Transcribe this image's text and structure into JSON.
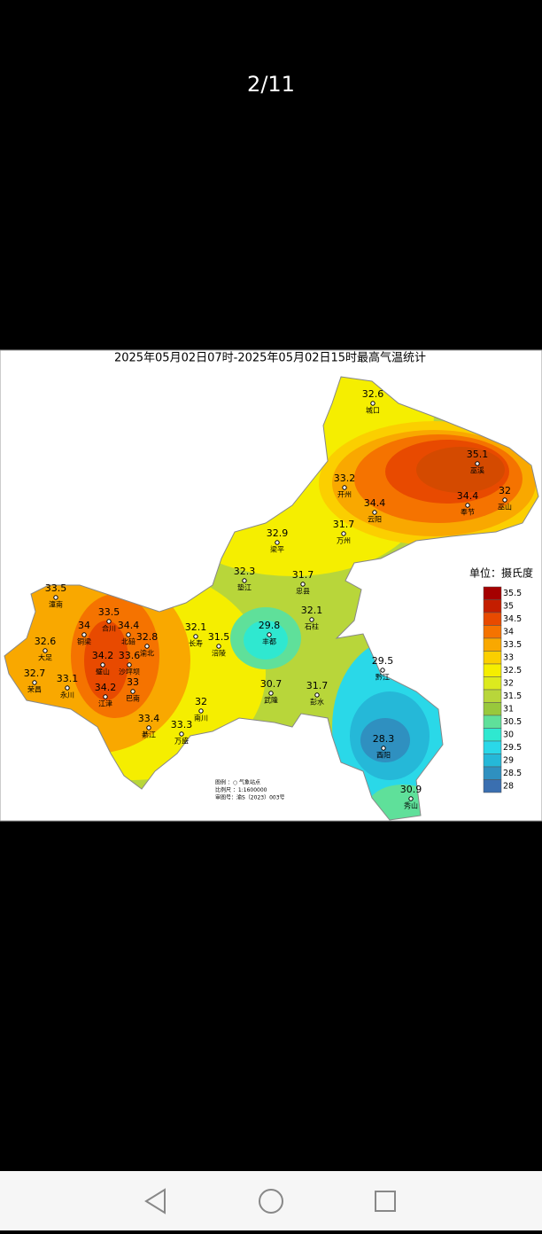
{
  "viewer": {
    "counter": "2/11"
  },
  "map": {
    "title": "2025年05月02日07时-2025年05月02日15时最高气温统计",
    "stations": [
      {
        "name": "城口",
        "value": 32.6
      },
      {
        "name": "巫溪",
        "value": 35.1
      },
      {
        "name": "开州",
        "value": 33.2
      },
      {
        "name": "巫山",
        "value": 32
      },
      {
        "name": "云阳",
        "value": 34.4
      },
      {
        "name": "奉节",
        "value": 34.4
      },
      {
        "name": "万州",
        "value": 31.7
      },
      {
        "name": "梁平",
        "value": 32.9
      },
      {
        "name": "垫江",
        "value": 32.3
      },
      {
        "name": "忠县",
        "value": 31.7
      },
      {
        "name": "潼南",
        "value": 33.5
      },
      {
        "name": "合川",
        "value": 33.5
      },
      {
        "name": "石柱",
        "value": 32.1
      },
      {
        "name": "铜梁",
        "value": 34
      },
      {
        "name": "北碚",
        "value": 34.4
      },
      {
        "name": "渝北",
        "value": 32.8
      },
      {
        "name": "长寿",
        "value": 32.1
      },
      {
        "name": "涪陵",
        "value": 31.5
      },
      {
        "name": "丰都",
        "value": 29.8
      },
      {
        "name": "大足",
        "value": 32.6
      },
      {
        "name": "璧山",
        "value": 34.2
      },
      {
        "name": "沙坪坝",
        "value": 33.6
      },
      {
        "name": "黔江",
        "value": 29.5
      },
      {
        "name": "荣昌",
        "value": 32.7
      },
      {
        "name": "永川",
        "value": 33.1
      },
      {
        "name": "巴南",
        "value": 33
      },
      {
        "name": "江津",
        "value": 34.2
      },
      {
        "name": "武隆",
        "value": 30.7
      },
      {
        "name": "彭水",
        "value": 31.7
      },
      {
        "name": "南川",
        "value": 32
      },
      {
        "name": "綦江",
        "value": 33.4
      },
      {
        "name": "万盛",
        "value": 33.3
      },
      {
        "name": "酉阳",
        "value": 28.3
      },
      {
        "name": "秀山",
        "value": 30.9
      }
    ],
    "legend": {
      "title": "单位：摄氏度",
      "levels": [
        {
          "value": 35.5,
          "color": "#a50000"
        },
        {
          "value": 35,
          "color": "#c41e00"
        },
        {
          "value": 34.5,
          "color": "#e84a00"
        },
        {
          "value": 34,
          "color": "#f57300"
        },
        {
          "value": 33.5,
          "color": "#f9a800"
        },
        {
          "value": 33,
          "color": "#fbcf00"
        },
        {
          "value": 32.5,
          "color": "#f5ee00"
        },
        {
          "value": 32,
          "color": "#dcea1e"
        },
        {
          "value": 31.5,
          "color": "#b8d63a"
        },
        {
          "value": 31,
          "color": "#98c83c"
        },
        {
          "value": 30.5,
          "color": "#5fe09a"
        },
        {
          "value": 30,
          "color": "#2fe8d0"
        },
        {
          "value": 29.5,
          "color": "#2ad8e8"
        },
        {
          "value": 29,
          "color": "#25b8d8"
        },
        {
          "value": 28.5,
          "color": "#2f90c0"
        },
        {
          "value": 28,
          "color": "#3a6fb0"
        }
      ]
    },
    "notes": [
      "图例 ：○ 气象站点",
      "比例尺 ：1:1600000",
      "审图号：渝S（2023）003号"
    ]
  }
}
